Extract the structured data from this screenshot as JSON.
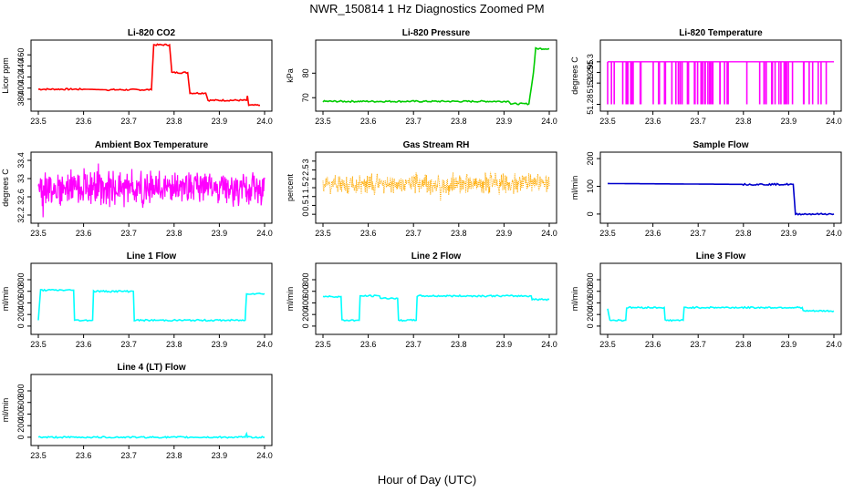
{
  "title": "NWR_150814  1 Hz Diagnostics Zoomed PM",
  "xlabel": "Hour of Day (UTC)",
  "chart_data": [
    {
      "type": "line",
      "title": "Li-820 CO2",
      "ylabel": "Licor ppm",
      "color": "#ff0000",
      "xlim": [
        23.5,
        24.0
      ],
      "ylim": [
        365,
        480
      ],
      "yticks": [
        380,
        400,
        420,
        440,
        460
      ],
      "x": [
        23.5,
        23.6,
        23.65,
        23.7,
        23.75,
        23.755,
        23.79,
        23.795,
        23.83,
        23.835,
        23.87,
        23.875,
        23.96,
        23.962,
        23.965,
        23.99
      ],
      "values": [
        398,
        398,
        397,
        397,
        397,
        478,
        478,
        428,
        428,
        391,
        391,
        378,
        378,
        386,
        369,
        369
      ]
    },
    {
      "type": "line",
      "title": "Li-820 Pressure",
      "ylabel": "kPa",
      "color": "#00cc00",
      "xlim": [
        23.5,
        24.0
      ],
      "ylim": [
        66,
        92
      ],
      "yticks": [
        70,
        80
      ],
      "x": [
        23.5,
        23.6,
        23.7,
        23.8,
        23.91,
        23.915,
        23.955,
        23.965,
        23.97,
        24.0
      ],
      "values": [
        68.5,
        68.5,
        68.5,
        68.5,
        68.5,
        67.5,
        67.5,
        80,
        90,
        90
      ]
    },
    {
      "type": "line",
      "title": "Li-820 Temperature",
      "ylabel": "degrees C",
      "color": "#ff00ff",
      "xlim": [
        23.5,
        24.0
      ],
      "ylim": [
        51.2785,
        51.3085
      ],
      "yticks": [
        51.28,
        51.29,
        51.295,
        51.3
      ],
      "x": [
        23.5,
        23.52,
        23.55,
        23.58,
        23.6,
        23.63,
        23.66,
        23.7,
        23.72,
        23.75,
        23.8,
        23.82,
        23.85,
        23.87,
        23.9,
        23.92,
        23.95,
        23.98,
        24.0
      ],
      "values": [
        51.3,
        51.3,
        51.3,
        51.3,
        51.3,
        51.3,
        51.3,
        51.3,
        51.3,
        51.3,
        51.3,
        51.3,
        51.3,
        51.3,
        51.3,
        51.3,
        51.3,
        51.3,
        51.3
      ],
      "low_value": 51.28
    },
    {
      "type": "line",
      "title": "Ambient Box Temperature",
      "ylabel": "degrees C",
      "color": "#ff00ff",
      "xlim": [
        23.5,
        24.0
      ],
      "ylim": [
        32.1,
        33.5
      ],
      "yticks": [
        32.2,
        32.6,
        33.0,
        33.4
      ],
      "x": [
        23.5,
        23.6,
        23.7,
        23.8,
        23.9,
        24.0
      ],
      "values": [
        32.8,
        32.8,
        32.8,
        32.8,
        32.8,
        32.8
      ],
      "noise": 0.45
    },
    {
      "type": "scatter",
      "title": "Gas Stream RH",
      "ylabel": "percent",
      "color": "#ffaa00",
      "xlim": [
        23.5,
        24.0
      ],
      "ylim": [
        -0.3,
        3.3
      ],
      "yticks": [
        0.0,
        0.5,
        1.0,
        1.5,
        2.0,
        2.5,
        3.0
      ],
      "x": [
        23.5,
        23.6,
        23.7,
        23.8,
        23.9,
        24.0
      ],
      "values": [
        1.7,
        1.7,
        1.7,
        1.7,
        1.7,
        1.7
      ],
      "noise": 0.7
    },
    {
      "type": "line",
      "title": "Sample Flow",
      "ylabel": "ml/min",
      "color": "#0000cc",
      "xlim": [
        23.5,
        24.0
      ],
      "ylim": [
        -20,
        210
      ],
      "yticks": [
        0,
        100,
        200
      ],
      "x": [
        23.5,
        23.6,
        23.7,
        23.8,
        23.91,
        23.915,
        23.93,
        24.0
      ],
      "values": [
        110,
        109,
        108,
        107,
        107,
        0,
        0,
        0
      ]
    },
    {
      "type": "line",
      "title": "Line 1 Flow",
      "ylabel": "ml/min",
      "color": "#00ffff",
      "xlim": [
        23.5,
        24.0
      ],
      "ylim": [
        -80,
        1020
      ],
      "yticks": [
        0,
        200,
        400,
        600,
        800
      ],
      "x": [
        23.5,
        23.505,
        23.578,
        23.58,
        23.62,
        23.622,
        23.71,
        23.712,
        23.957,
        23.96,
        24.0
      ],
      "values": [
        100,
        620,
        620,
        100,
        100,
        600,
        600,
        100,
        100,
        560,
        560
      ]
    },
    {
      "type": "line",
      "title": "Line 2 Flow",
      "ylabel": "ml/min",
      "color": "#00ffff",
      "xlim": [
        23.5,
        24.0
      ],
      "ylim": [
        -80,
        1020
      ],
      "yticks": [
        0,
        200,
        400,
        600,
        800
      ],
      "x": [
        23.5,
        23.54,
        23.542,
        23.58,
        23.582,
        23.625,
        23.627,
        23.665,
        23.667,
        23.706,
        23.708,
        23.96,
        23.962,
        24.0
      ],
      "values": [
        510,
        510,
        100,
        100,
        520,
        520,
        480,
        480,
        100,
        100,
        520,
        520,
        460,
        460
      ]
    },
    {
      "type": "line",
      "title": "Line 3 Flow",
      "ylabel": "ml/min",
      "color": "#00ffff",
      "xlim": [
        23.5,
        24.0
      ],
      "ylim": [
        -80,
        1020
      ],
      "yticks": [
        0,
        200,
        400,
        600,
        800
      ],
      "x": [
        23.5,
        23.505,
        23.54,
        23.542,
        23.625,
        23.627,
        23.667,
        23.669,
        23.9,
        23.93,
        23.932,
        24.0
      ],
      "values": [
        300,
        100,
        100,
        320,
        320,
        100,
        100,
        320,
        320,
        320,
        260,
        260
      ]
    },
    {
      "type": "line",
      "title": "Line 4 (LT) Flow",
      "ylabel": "ml/min",
      "color": "#00ffff",
      "xlim": [
        23.5,
        24.0
      ],
      "ylim": [
        -80,
        1020
      ],
      "yticks": [
        0,
        200,
        400,
        600,
        800
      ],
      "x": [
        23.5,
        23.6,
        23.7,
        23.8,
        23.957,
        23.96,
        23.962,
        24.0
      ],
      "values": [
        0,
        0,
        0,
        0,
        0,
        60,
        0,
        0
      ]
    }
  ],
  "xticks": [
    23.5,
    23.6,
    23.7,
    23.8,
    23.9,
    24.0
  ]
}
